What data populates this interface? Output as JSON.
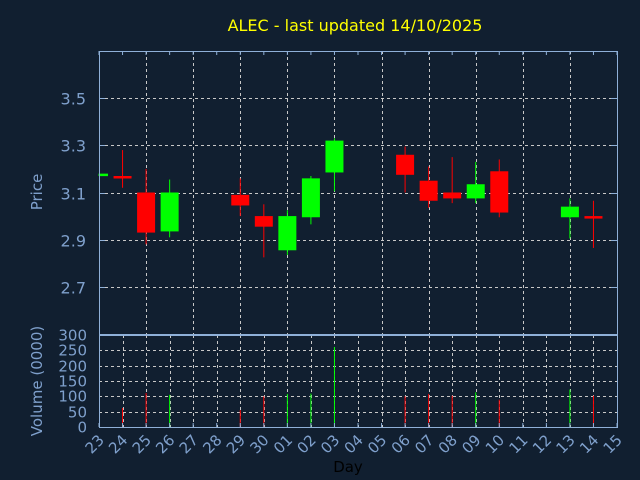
{
  "chart_data": {
    "type": "candlestick",
    "title": "ALEC - last updated 14/10/2025",
    "colors": {
      "background": "#111f30",
      "title": "#ffff00",
      "up": "#00ff00",
      "down": "#ff0000",
      "axis": "#8fb0d8",
      "grid": "#c8c8c8",
      "xlabel": "#000000"
    },
    "grid": true,
    "x_ticks": [
      "23",
      "24",
      "25",
      "26",
      "27",
      "28",
      "29",
      "30",
      "01",
      "02",
      "03",
      "04",
      "05",
      "06",
      "07",
      "08",
      "09",
      "10",
      "11",
      "12",
      "13",
      "14",
      "15"
    ],
    "xlabel": "Day",
    "price": {
      "ylabel": "Price",
      "ylim": [
        2.5,
        3.7
      ],
      "y_ticks": [
        "3.5",
        "3.3",
        "3.1",
        "2.9",
        "2.7"
      ],
      "candles": [
        {
          "day": "23",
          "open": 3.17,
          "high": 3.18,
          "low": 3.17,
          "close": 3.18
        },
        {
          "day": "24",
          "open": 3.17,
          "high": 3.28,
          "low": 3.12,
          "close": 3.16
        },
        {
          "day": "25",
          "open": 3.1,
          "high": 3.2,
          "low": 2.88,
          "close": 2.93
        },
        {
          "day": "26",
          "open": 2.935,
          "high": 3.155,
          "low": 2.91,
          "close": 3.1
        },
        {
          "day": "29",
          "open": 3.09,
          "high": 3.16,
          "low": 3.0,
          "close": 3.045
        },
        {
          "day": "30",
          "open": 3.0,
          "high": 3.05,
          "low": 2.825,
          "close": 2.955
        },
        {
          "day": "01",
          "open": 2.855,
          "high": 3.025,
          "low": 2.835,
          "close": 3.0
        },
        {
          "day": "02",
          "open": 2.995,
          "high": 3.17,
          "low": 2.965,
          "close": 3.16
        },
        {
          "day": "03",
          "open": 3.185,
          "high": 3.33,
          "low": 3.105,
          "close": 3.32
        },
        {
          "day": "06",
          "open": 3.26,
          "high": 3.295,
          "low": 3.1,
          "close": 3.175
        },
        {
          "day": "07",
          "open": 3.15,
          "high": 3.21,
          "low": 3.035,
          "close": 3.065
        },
        {
          "day": "08",
          "open": 3.1,
          "high": 3.25,
          "low": 3.055,
          "close": 3.075
        },
        {
          "day": "09",
          "open": 3.075,
          "high": 3.23,
          "low": 3.055,
          "close": 3.135
        },
        {
          "day": "10",
          "open": 3.19,
          "high": 3.24,
          "low": 2.995,
          "close": 3.015
        },
        {
          "day": "13",
          "open": 2.995,
          "high": 3.075,
          "low": 2.905,
          "close": 3.04
        },
        {
          "day": "14",
          "open": 3.0,
          "high": 3.065,
          "low": 2.865,
          "close": 2.99
        }
      ]
    },
    "volume": {
      "ylabel": "Volume (0000)",
      "ylim": [
        0,
        300
      ],
      "y_ticks": [
        "300",
        "250",
        "200",
        "150",
        "100",
        "50",
        "0"
      ],
      "bars": [
        {
          "day": "24",
          "value": 62,
          "dir": "down"
        },
        {
          "day": "25",
          "value": 111,
          "dir": "down"
        },
        {
          "day": "26",
          "value": 105,
          "dir": "up"
        },
        {
          "day": "29",
          "value": 55,
          "dir": "down"
        },
        {
          "day": "30",
          "value": 100,
          "dir": "down"
        },
        {
          "day": "01",
          "value": 108,
          "dir": "up"
        },
        {
          "day": "02",
          "value": 109,
          "dir": "up"
        },
        {
          "day": "03",
          "value": 261,
          "dir": "up"
        },
        {
          "day": "06",
          "value": 100,
          "dir": "down"
        },
        {
          "day": "07",
          "value": 108,
          "dir": "down"
        },
        {
          "day": "08",
          "value": 102,
          "dir": "down"
        },
        {
          "day": "09",
          "value": 113,
          "dir": "up"
        },
        {
          "day": "10",
          "value": 89,
          "dir": "down"
        },
        {
          "day": "13",
          "value": 122,
          "dir": "up"
        },
        {
          "day": "14",
          "value": 102,
          "dir": "down"
        }
      ]
    }
  }
}
